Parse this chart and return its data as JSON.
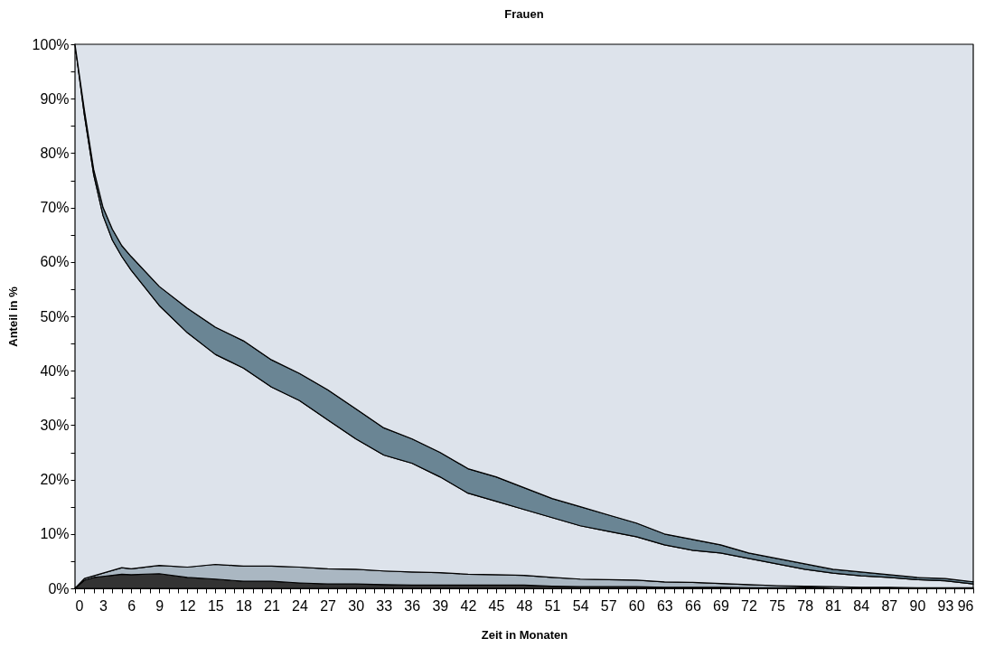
{
  "chart_data": {
    "type": "area",
    "title": "Frauen",
    "xlabel": "Zeit in Monaten",
    "ylabel": "Anteil in %",
    "stacked": true,
    "legend": false,
    "grid": false,
    "x": [
      0,
      1,
      2,
      3,
      4,
      5,
      6,
      9,
      12,
      15,
      18,
      21,
      24,
      27,
      30,
      33,
      36,
      39,
      42,
      45,
      48,
      51,
      54,
      57,
      60,
      63,
      66,
      69,
      72,
      75,
      78,
      81,
      84,
      87,
      90,
      93,
      96
    ],
    "xlim": [
      0,
      96
    ],
    "ylim": [
      0,
      100
    ],
    "xticks": [
      0,
      {
        "value": 1,
        "label": null
      },
      {
        "value": 2,
        "label": null
      },
      3,
      {
        "value": 4,
        "label": null
      },
      {
        "value": 5,
        "label": null
      },
      6,
      {
        "value": 7,
        "label": null
      },
      {
        "value": 8,
        "label": null
      },
      9,
      {
        "value": 10,
        "label": null
      },
      {
        "value": 11,
        "label": null
      },
      12,
      {
        "value": 13,
        "label": null
      },
      {
        "value": 14,
        "label": null
      },
      15,
      {
        "value": 16,
        "label": null
      },
      {
        "value": 17,
        "label": null
      },
      18,
      {
        "value": 19,
        "label": null
      },
      {
        "value": 20,
        "label": null
      },
      21,
      {
        "value": 22,
        "label": null
      },
      {
        "value": 23,
        "label": null
      },
      24,
      {
        "value": 25,
        "label": null
      },
      {
        "value": 26,
        "label": null
      },
      27,
      {
        "value": 28,
        "label": null
      },
      {
        "value": 29,
        "label": null
      },
      30,
      {
        "value": 31,
        "label": null
      },
      {
        "value": 32,
        "label": null
      },
      33,
      {
        "value": 34,
        "label": null
      },
      {
        "value": 35,
        "label": null
      },
      36,
      {
        "value": 37,
        "label": null
      },
      {
        "value": 38,
        "label": null
      },
      39,
      {
        "value": 40,
        "label": null
      },
      {
        "value": 41,
        "label": null
      },
      42,
      {
        "value": 43,
        "label": null
      },
      {
        "value": 44,
        "label": null
      },
      45,
      {
        "value": 46,
        "label": null
      },
      {
        "value": 47,
        "label": null
      },
      48,
      {
        "value": 49,
        "label": null
      },
      {
        "value": 50,
        "label": null
      },
      51,
      {
        "value": 52,
        "label": null
      },
      {
        "value": 53,
        "label": null
      },
      54,
      {
        "value": 55,
        "label": null
      },
      {
        "value": 56,
        "label": null
      },
      57,
      {
        "value": 58,
        "label": null
      },
      {
        "value": 59,
        "label": null
      },
      60,
      {
        "value": 61,
        "label": null
      },
      {
        "value": 62,
        "label": null
      },
      63,
      {
        "value": 64,
        "label": null
      },
      {
        "value": 65,
        "label": null
      },
      66,
      {
        "value": 67,
        "label": null
      },
      {
        "value": 68,
        "label": null
      },
      69,
      {
        "value": 70,
        "label": null
      },
      {
        "value": 71,
        "label": null
      },
      72,
      {
        "value": 73,
        "label": null
      },
      {
        "value": 74,
        "label": null
      },
      75,
      {
        "value": 76,
        "label": null
      },
      {
        "value": 77,
        "label": null
      },
      78,
      {
        "value": 79,
        "label": null
      },
      {
        "value": 80,
        "label": null
      },
      81,
      {
        "value": 82,
        "label": null
      },
      {
        "value": 83,
        "label": null
      },
      84,
      {
        "value": 85,
        "label": null
      },
      {
        "value": 86,
        "label": null
      },
      87,
      {
        "value": 88,
        "label": null
      },
      {
        "value": 89,
        "label": null
      },
      90,
      {
        "value": 91,
        "label": null
      },
      {
        "value": 92,
        "label": null
      },
      93,
      {
        "value": 94,
        "label": null
      },
      {
        "value": 95,
        "label": null
      },
      96
    ],
    "yticks": [
      {
        "value": 0,
        "label": "0%"
      },
      {
        "value": 5,
        "label": null
      },
      {
        "value": 10,
        "label": "10%"
      },
      {
        "value": 15,
        "label": null
      },
      {
        "value": 20,
        "label": "20%"
      },
      {
        "value": 25,
        "label": null
      },
      {
        "value": 30,
        "label": "30%"
      },
      {
        "value": 35,
        "label": null
      },
      {
        "value": 40,
        "label": "40%"
      },
      {
        "value": 45,
        "label": null
      },
      {
        "value": 50,
        "label": "50%"
      },
      {
        "value": 55,
        "label": null
      },
      {
        "value": 60,
        "label": "60%"
      },
      {
        "value": 65,
        "label": null
      },
      {
        "value": 70,
        "label": "70%"
      },
      {
        "value": 75,
        "label": null
      },
      {
        "value": 80,
        "label": "80%"
      },
      {
        "value": 85,
        "label": null
      },
      {
        "value": 90,
        "label": "90%"
      },
      {
        "value": 95,
        "label": null
      },
      {
        "value": 100,
        "label": "100%"
      }
    ],
    "series": [
      {
        "color": "#333333",
        "values": [
          0,
          1.5,
          2.0,
          2.2,
          2.4,
          2.6,
          2.5,
          2.7,
          2.0,
          1.7,
          1.3,
          1.3,
          1.0,
          0.8,
          0.8,
          0.7,
          0.6,
          0.6,
          0.6,
          0.6,
          0.6,
          0.4,
          0.3,
          0.3,
          0.3,
          0.2,
          0.2,
          0.2,
          0.1,
          0.1,
          0.2,
          0,
          0,
          0,
          0,
          0,
          0
        ]
      },
      {
        "color": "#aab7c2",
        "values": [
          0,
          0.3,
          0.3,
          0.6,
          0.9,
          1.2,
          1.1,
          1.5,
          1.9,
          2.7,
          2.8,
          2.8,
          2.9,
          2.8,
          2.7,
          2.5,
          2.4,
          2.3,
          2.0,
          1.9,
          1.8,
          1.6,
          1.4,
          1.3,
          1.2,
          1.0,
          0.9,
          0.7,
          0.6,
          0.4,
          0.2,
          0.3,
          0.2,
          0.2,
          0.1,
          0.1,
          0.1
        ]
      },
      {
        "color": "#dde3eb",
        "values": [
          100,
          85.2,
          73.7,
          65.7,
          60.7,
          57.2,
          54.9,
          47.8,
          43.1,
          38.6,
          36.4,
          32.9,
          30.6,
          27.4,
          24,
          21.3,
          20,
          17.6,
          14.9,
          13.5,
          12.1,
          11,
          9.8,
          8.9,
          8,
          6.8,
          5.9,
          5.6,
          4.8,
          4,
          3.1,
          2.5,
          2.1,
          1.8,
          1.5,
          1.3,
          0.7
        ]
      },
      {
        "color": "#6a8594",
        "values": [
          0,
          1,
          1,
          1.5,
          2,
          2,
          2.5,
          3.5,
          4.5,
          5,
          5,
          5,
          5,
          5.5,
          5.5,
          5,
          4.5,
          4.5,
          4.5,
          4.5,
          4,
          3.5,
          3.5,
          3,
          2.5,
          2,
          2,
          1.5,
          1,
          1,
          1,
          0.7,
          0.7,
          0.5,
          0.4,
          0.4,
          0.4
        ]
      },
      {
        "color": "#dde3eb",
        "values": [
          0,
          12,
          23,
          30,
          34,
          37,
          39,
          44.5,
          48.5,
          52,
          54.5,
          58,
          60.5,
          63.5,
          67,
          70.5,
          72.5,
          75,
          78,
          79.5,
          81.5,
          83.5,
          85,
          86.5,
          88,
          90,
          91,
          92,
          93.5,
          94.5,
          95.5,
          96.5,
          97,
          97.5,
          98,
          98.2,
          98.8
        ]
      }
    ]
  }
}
